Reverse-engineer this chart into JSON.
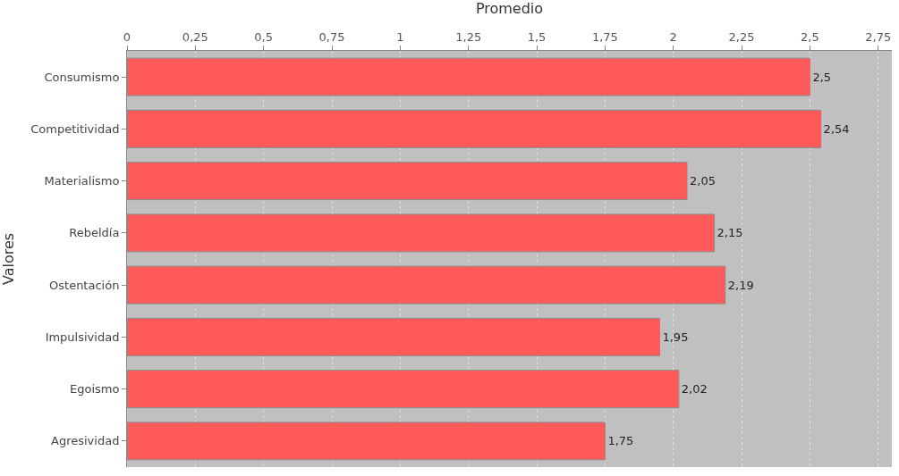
{
  "chart_data": {
    "type": "bar",
    "orientation": "horizontal",
    "xlabel": "Promedio",
    "ylabel": "Valores",
    "categories": [
      "Consumismo",
      "Competitividad",
      "Materialismo",
      "Rebeldía",
      "Ostentación",
      "Impulsividad",
      "Egoismo",
      "Agresividad"
    ],
    "values": [
      2.5,
      2.54,
      2.05,
      2.15,
      2.19,
      1.95,
      2.02,
      1.75
    ],
    "value_labels": [
      "2,5",
      "2,54",
      "2,05",
      "2,15",
      "2,19",
      "1,95",
      "2,02",
      "1,75"
    ],
    "color": "#ff5a5a",
    "xlim": [
      0,
      2.8
    ],
    "xticks": [
      0,
      {
        "value": 0.25,
        "label": "0,25"
      },
      {
        "value": 0.5,
        "label": "0,5"
      },
      {
        "value": 0.75,
        "label": "0,75"
      },
      1,
      {
        "value": 1.25,
        "label": "1,25"
      },
      {
        "value": 1.5,
        "label": "1,5"
      },
      {
        "value": 1.75,
        "label": "1,75"
      },
      2,
      {
        "value": 2.25,
        "label": "2,25"
      },
      {
        "value": 2.5,
        "label": "2,5"
      },
      {
        "value": 2.75,
        "label": "2,75"
      }
    ],
    "grid": "x",
    "legend": false
  }
}
